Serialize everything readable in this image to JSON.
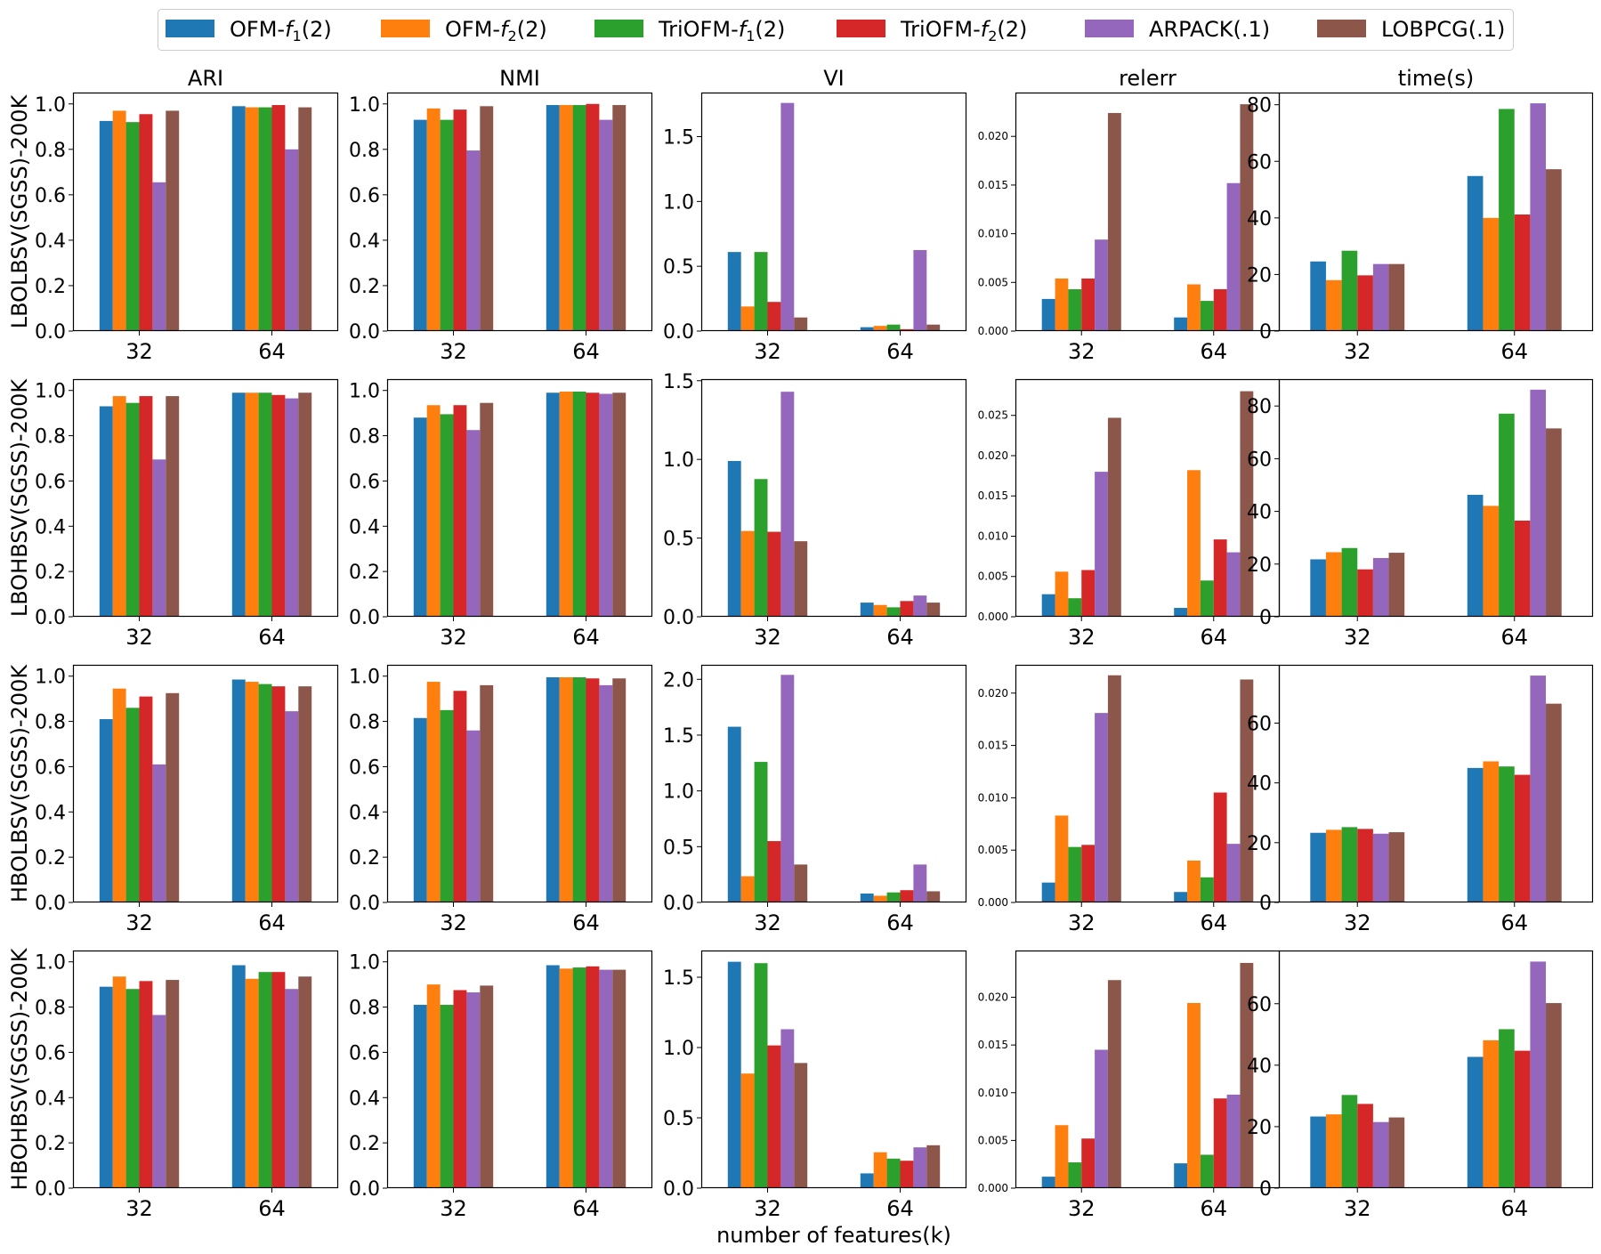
{
  "legend": [
    {
      "name": "OFM-f1(2)",
      "base": "OFM-",
      "italic": "f",
      "sub": "1",
      "suffix": "(2)",
      "color": "#1f77b4"
    },
    {
      "name": "OFM-f2(2)",
      "base": "OFM-",
      "italic": "f",
      "sub": "2",
      "suffix": "(2)",
      "color": "#ff7f0e"
    },
    {
      "name": "TriOFM-f1(2)",
      "base": "TriOFM-",
      "italic": "f",
      "sub": "1",
      "suffix": "(2)",
      "color": "#2ca02c"
    },
    {
      "name": "TriOFM-f2(2)",
      "base": "TriOFM-",
      "italic": "f",
      "sub": "2",
      "suffix": "(2)",
      "color": "#d62728"
    },
    {
      "name": "ARPACK(.1)",
      "base": "ARPACK(.1)",
      "italic": "",
      "sub": "",
      "suffix": "",
      "color": "#9467bd"
    },
    {
      "name": "LOBPCG(.1)",
      "base": "LOBPCG(.1)",
      "italic": "",
      "sub": "",
      "suffix": "",
      "color": "#8c564b"
    }
  ],
  "column_titles": [
    "ARI",
    "NMI",
    "VI",
    "relerr",
    "time(s)"
  ],
  "row_labels": [
    "LBOLBSV(SGSS)-200K",
    "LBOHBSV(SGSS)-200K",
    "HBOLBSV(SGSS)-200K",
    "HBOHBSV(SGSS)-200K"
  ],
  "xlabel": "number of features(k)",
  "chart_data": {
    "type": "bar",
    "categories": [
      "32",
      "64"
    ],
    "series_names": [
      "OFM-f1(2)",
      "OFM-f2(2)",
      "TriOFM-f1(2)",
      "TriOFM-f2(2)",
      "ARPACK(.1)",
      "LOBPCG(.1)"
    ],
    "axes": {
      "ARI": {
        "ylim": [
          0,
          1.05
        ],
        "ticks": [
          0.0,
          0.2,
          0.4,
          0.6,
          0.8,
          1.0
        ],
        "tick_labels": [
          "0.0",
          "0.2",
          "0.4",
          "0.6",
          "0.8",
          "1.0"
        ]
      },
      "NMI": {
        "ylim": [
          0,
          1.05
        ],
        "ticks": [
          0.0,
          0.2,
          0.4,
          0.6,
          0.8,
          1.0
        ],
        "tick_labels": [
          "0.0",
          "0.2",
          "0.4",
          "0.6",
          "0.8",
          "1.0"
        ]
      },
      "VI": [
        {
          "ylim": [
            0,
            1.84
          ],
          "ticks": [
            0.0,
            0.5,
            1.0,
            1.5
          ],
          "tick_labels": [
            "0.0",
            "0.5",
            "1.0",
            "1.5"
          ]
        },
        {
          "ylim": [
            0,
            1.51
          ],
          "ticks": [
            0.0,
            0.5,
            1.0,
            1.5
          ],
          "tick_labels": [
            "0.0",
            "0.5",
            "1.0",
            "1.5"
          ]
        },
        {
          "ylim": [
            0,
            2.13
          ],
          "ticks": [
            0.0,
            0.5,
            1.0,
            1.5,
            2.0
          ],
          "tick_labels": [
            "0.0",
            "0.5",
            "1.0",
            "1.5",
            "2.0"
          ]
        },
        {
          "ylim": [
            0,
            1.69
          ],
          "ticks": [
            0.0,
            0.5,
            1.0,
            1.5
          ],
          "tick_labels": [
            "0.0",
            "0.5",
            "1.0",
            "1.5"
          ]
        }
      ],
      "relerr": [
        {
          "ylim": [
            0,
            0.0245
          ],
          "ticks": [
            0.0,
            0.005,
            0.01,
            0.015,
            0.02
          ],
          "tick_labels": [
            "0.000",
            "0.005",
            "0.010",
            "0.015",
            "0.020"
          ]
        },
        {
          "ylim": [
            0,
            0.0295
          ],
          "ticks": [
            0.0,
            0.005,
            0.01,
            0.015,
            0.02,
            0.025
          ],
          "tick_labels": [
            "0.000",
            "0.005",
            "0.010",
            "0.015",
            "0.020",
            "0.025"
          ]
        },
        {
          "ylim": [
            0,
            0.0227
          ],
          "ticks": [
            0.0,
            0.005,
            0.01,
            0.015,
            0.02
          ],
          "tick_labels": [
            "0.000",
            "0.005",
            "0.010",
            "0.015",
            "0.020"
          ]
        },
        {
          "ylim": [
            0,
            0.0249
          ],
          "ticks": [
            0.0,
            0.005,
            0.01,
            0.015,
            0.02
          ],
          "tick_labels": [
            "0.000",
            "0.005",
            "0.010",
            "0.015",
            "0.020"
          ]
        }
      ],
      "time(s)": [
        {
          "ylim": [
            0,
            84.3
          ],
          "ticks": [
            0,
            20,
            40,
            60,
            80
          ],
          "tick_labels": [
            "0",
            "20",
            "40",
            "60",
            "80"
          ]
        },
        {
          "ylim": [
            0,
            90.2
          ],
          "ticks": [
            0,
            20,
            40,
            60,
            80
          ],
          "tick_labels": [
            "0",
            "20",
            "40",
            "60",
            "80"
          ]
        },
        {
          "ylim": [
            0,
            79.5
          ],
          "ticks": [
            0,
            20,
            40,
            60
          ],
          "tick_labels": [
            "0",
            "20",
            "40",
            "60"
          ]
        },
        {
          "ylim": [
            0,
            77.3
          ],
          "ticks": [
            0,
            20,
            40,
            60
          ],
          "tick_labels": [
            "0",
            "20",
            "40",
            "60"
          ]
        }
      ]
    },
    "rows": [
      {
        "label": "LBOLBSV(SGSS)-200K",
        "ARI": {
          "32": [
            0.925,
            0.97,
            0.92,
            0.955,
            0.655,
            0.97
          ],
          "64": [
            0.99,
            0.985,
            0.985,
            0.995,
            0.8,
            0.985
          ]
        },
        "NMI": {
          "32": [
            0.93,
            0.98,
            0.93,
            0.975,
            0.795,
            0.99
          ],
          "64": [
            0.995,
            0.995,
            0.995,
            1.0,
            0.93,
            0.995
          ]
        },
        "VI": {
          "32": [
            0.61,
            0.19,
            0.61,
            0.225,
            1.76,
            0.105
          ],
          "64": [
            0.03,
            0.04,
            0.05,
            0.015,
            0.625,
            0.05
          ]
        },
        "relerr": {
          "32": [
            0.0033,
            0.0054,
            0.0043,
            0.0054,
            0.0094,
            0.0224
          ],
          "64": [
            0.0014,
            0.0048,
            0.0031,
            0.0043,
            0.0152,
            0.0233
          ]
        },
        "time(s)": {
          "32": [
            24.6,
            18.0,
            28.4,
            19.7,
            23.7,
            23.7
          ],
          "64": [
            54.8,
            40.0,
            78.5,
            41.2,
            80.5,
            57.2
          ]
        }
      },
      {
        "label": "LBOHBSV(SGSS)-200K",
        "ARI": {
          "32": [
            0.93,
            0.975,
            0.945,
            0.975,
            0.695,
            0.975
          ],
          "64": [
            0.99,
            0.99,
            0.99,
            0.98,
            0.965,
            0.99
          ]
        },
        "NMI": {
          "32": [
            0.88,
            0.935,
            0.895,
            0.935,
            0.825,
            0.945
          ],
          "64": [
            0.99,
            0.995,
            0.995,
            0.99,
            0.985,
            0.99
          ]
        },
        "VI": {
          "32": [
            0.99,
            0.545,
            0.875,
            0.54,
            1.43,
            0.48
          ],
          "64": [
            0.09,
            0.075,
            0.06,
            0.1,
            0.135,
            0.09
          ]
        },
        "relerr": {
          "32": [
            0.0028,
            0.0056,
            0.0023,
            0.0058,
            0.018,
            0.0247
          ],
          "64": [
            0.0011,
            0.0182,
            0.0045,
            0.0096,
            0.008,
            0.028
          ]
        },
        "time(s)": {
          "32": [
            21.8,
            24.5,
            26.1,
            18.0,
            22.3,
            24.3
          ],
          "64": [
            46.3,
            42.1,
            77.1,
            36.5,
            86.2,
            71.5
          ]
        }
      },
      {
        "label": "HBOLBSV(SGSS)-200K",
        "ARI": {
          "32": [
            0.81,
            0.945,
            0.86,
            0.91,
            0.61,
            0.925
          ],
          "64": [
            0.985,
            0.975,
            0.965,
            0.955,
            0.845,
            0.955
          ]
        },
        "NMI": {
          "32": [
            0.815,
            0.975,
            0.85,
            0.935,
            0.76,
            0.96
          ],
          "64": [
            0.995,
            0.995,
            0.995,
            0.99,
            0.96,
            0.99
          ]
        },
        "VI": {
          "32": [
            1.575,
            0.235,
            1.26,
            0.55,
            2.04,
            0.34
          ],
          "64": [
            0.08,
            0.06,
            0.09,
            0.11,
            0.34,
            0.1
          ]
        },
        "relerr": {
          "32": [
            0.0019,
            0.0083,
            0.0053,
            0.0055,
            0.0181,
            0.0217
          ],
          "64": [
            0.001,
            0.004,
            0.0024,
            0.0105,
            0.0056,
            0.0213
          ]
        },
        "time(s)": {
          "32": [
            23.3,
            24.3,
            25.2,
            24.6,
            23.0,
            23.5
          ],
          "64": [
            45.0,
            47.2,
            45.5,
            42.7,
            75.9,
            66.5
          ]
        }
      },
      {
        "label": "HBOHBSV(SGSS)-200K",
        "ARI": {
          "32": [
            0.89,
            0.935,
            0.88,
            0.915,
            0.765,
            0.92
          ],
          "64": [
            0.985,
            0.925,
            0.955,
            0.955,
            0.88,
            0.935
          ]
        },
        "NMI": {
          "32": [
            0.81,
            0.9,
            0.81,
            0.875,
            0.865,
            0.895
          ],
          "64": [
            0.985,
            0.97,
            0.975,
            0.98,
            0.965,
            0.965
          ]
        },
        "VI": {
          "32": [
            1.61,
            0.815,
            1.6,
            1.015,
            1.13,
            0.89
          ],
          "64": [
            0.105,
            0.255,
            0.21,
            0.195,
            0.29,
            0.305
          ]
        },
        "relerr": {
          "32": [
            0.0012,
            0.0066,
            0.0027,
            0.0052,
            0.0145,
            0.0218
          ],
          "64": [
            0.0026,
            0.0194,
            0.0035,
            0.0094,
            0.0098,
            0.0236
          ]
        },
        "time(s)": {
          "32": [
            23.3,
            24.0,
            30.3,
            27.4,
            21.5,
            23.0
          ],
          "64": [
            42.7,
            48.1,
            51.7,
            44.7,
            73.7,
            60.2
          ]
        }
      }
    ]
  }
}
